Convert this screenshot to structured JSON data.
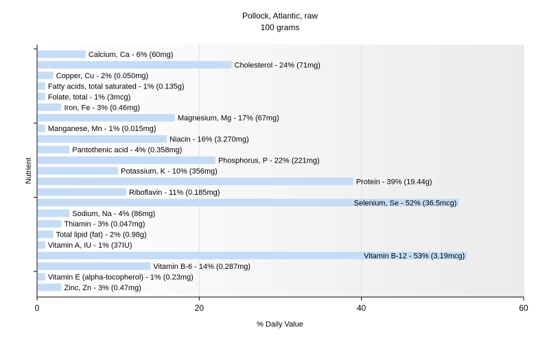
{
  "chart_data": {
    "type": "bar",
    "orientation": "horizontal",
    "title": "Pollock, Atlantic, raw",
    "subtitle": "100 grams",
    "xlabel": "% Daily Value",
    "ylabel": "Nutrient",
    "xlim": [
      0,
      60
    ],
    "xticks": [
      0,
      20,
      40,
      60
    ],
    "bar_color": "#c5dcf7",
    "categories": [
      "Calcium, Ca",
      "Cholesterol",
      "Copper, Cu",
      "Fatty acids, total saturated",
      "Folate, total",
      "Iron, Fe",
      "Magnesium, Mg",
      "Manganese, Mn",
      "Niacin",
      "Pantothenic acid",
      "Phosphorus, P",
      "Potassium, K",
      "Protein",
      "Riboflavin",
      "Selenium, Se",
      "Sodium, Na",
      "Thiamin",
      "Total lipid (fat)",
      "Vitamin A, IU",
      "Vitamin B-12",
      "Vitamin B-6",
      "Vitamin E (alpha-tocopherol)",
      "Zinc, Zn"
    ],
    "values": [
      6,
      24,
      2,
      1,
      1,
      3,
      17,
      1,
      16,
      4,
      22,
      10,
      39,
      11,
      52,
      4,
      3,
      2,
      1,
      53,
      14,
      1,
      3
    ],
    "labels": [
      "Calcium, Ca - 6% (60mg)",
      "Cholesterol - 24% (71mg)",
      "Copper, Cu - 2% (0.050mg)",
      "Fatty acids, total saturated - 1% (0.135g)",
      "Folate, total - 1% (3mcg)",
      "Iron, Fe - 3% (0.46mg)",
      "Magnesium, Mg - 17% (67mg)",
      "Manganese, Mn - 1% (0.015mg)",
      "Niacin - 16% (3.270mg)",
      "Pantothenic acid - 4% (0.358mg)",
      "Phosphorus, P - 22% (221mg)",
      "Potassium, K - 10% (356mg)",
      "Protein - 39% (19.44g)",
      "Riboflavin - 11% (0.185mg)",
      "Selenium, Se - 52% (36.5mcg)",
      "Sodium, Na - 4% (86mg)",
      "Thiamin - 3% (0.047mg)",
      "Total lipid (fat) - 2% (0.98g)",
      "Vitamin A, IU - 1% (37IU)",
      "Vitamin B-12 - 53% (3.19mcg)",
      "Vitamin B-6 - 14% (0.287mg)",
      "Vitamin E (alpha-tocopherol) - 1% (0.23mg)",
      "Zinc, Zn - 3% (0.47mg)"
    ],
    "grid": true,
    "legend": "none"
  }
}
